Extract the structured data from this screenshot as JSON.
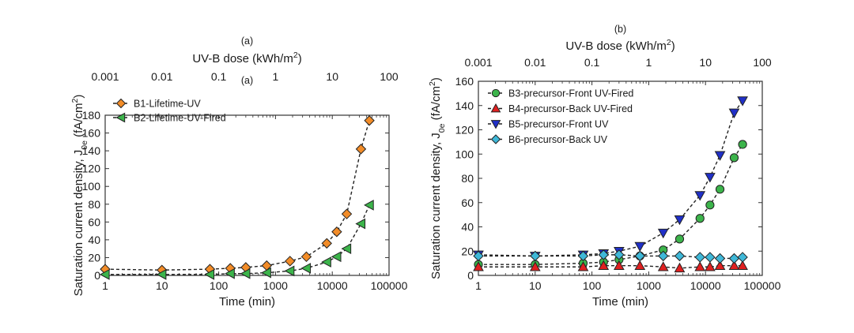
{
  "chart_data": [
    {
      "panel": "a",
      "type": "line",
      "labels_above": [
        "(a)",
        "(a)"
      ],
      "top_axis_label": "UV-B dose (kWh/m²)",
      "top_axis_ticks": [
        "0.001",
        "0.01",
        "0.1",
        "1",
        "10",
        "100"
      ],
      "xlabel": "Time (min)",
      "ylabel": "Saturation current density, J0e (fA/cm²)",
      "x_scale": "log",
      "xlim": [
        1,
        100000
      ],
      "ylim": [
        0,
        190
      ],
      "x_ticks": [
        "1",
        "10",
        "100",
        "1000",
        "10000",
        "100000"
      ],
      "y_ticks": [
        "0",
        "20",
        "40",
        "60",
        "80",
        "100",
        "120",
        "140",
        "160",
        "180"
      ],
      "legend_position": "top-left",
      "series": [
        {
          "name": "B1-Lifetime-UV",
          "color": "#f28c28",
          "marker": "diamond",
          "x": [
            1,
            10,
            70,
            160,
            300,
            700,
            1800,
            3500,
            8000,
            12000,
            18000,
            32000,
            45000
          ],
          "y": [
            7,
            6,
            7,
            8,
            9,
            11,
            16,
            21,
            36,
            49,
            69,
            142,
            174
          ]
        },
        {
          "name": "B2-Lifetime-UV-Fired",
          "color": "#3cb44b",
          "marker": "triangle-left",
          "x": [
            1,
            10,
            70,
            160,
            300,
            700,
            1800,
            3500,
            8000,
            12000,
            18000,
            32000,
            45000
          ],
          "y": [
            1,
            1,
            1,
            2,
            2,
            3,
            5,
            8,
            15,
            21,
            30,
            58,
            79
          ]
        }
      ]
    },
    {
      "panel": "b",
      "type": "line",
      "labels_above": [
        "(b)"
      ],
      "top_axis_label": "UV-B dose (kWh/m²)",
      "top_axis_ticks": [
        "0.001",
        "0.01",
        "0.1",
        "1",
        "10",
        "100"
      ],
      "xlabel": "Time (min)",
      "ylabel": "Saturation current density, J0e (fA/cm²)",
      "x_scale": "log",
      "xlim": [
        1,
        100000
      ],
      "ylim": [
        0,
        160
      ],
      "x_ticks": [
        "1",
        "10",
        "100",
        "1000",
        "10000",
        "100000"
      ],
      "y_ticks": [
        "0",
        "20",
        "40",
        "60",
        "80",
        "100",
        "120",
        "140",
        "160"
      ],
      "legend_position": "top-left",
      "series": [
        {
          "name": "B3-precursor-Front UV-Fired",
          "color": "#3cb44b",
          "marker": "circle",
          "x": [
            1,
            10,
            70,
            160,
            300,
            700,
            1800,
            3500,
            8000,
            12000,
            18000,
            32000,
            45000
          ],
          "y": [
            9,
            9,
            10,
            11,
            13,
            16,
            21,
            30,
            47,
            58,
            71,
            97,
            108
          ]
        },
        {
          "name": "B4-precursor-Back UV-Fired",
          "color": "#e02020",
          "marker": "triangle-up",
          "x": [
            1,
            10,
            70,
            160,
            300,
            700,
            1800,
            3500,
            8000,
            12000,
            18000,
            32000,
            45000
          ],
          "y": [
            7,
            7,
            7,
            8,
            8,
            8,
            7,
            6,
            7,
            7,
            8,
            8,
            8
          ]
        },
        {
          "name": "B5-precursor-Front UV",
          "color": "#2030c8",
          "marker": "triangle-down",
          "x": [
            1,
            10,
            70,
            160,
            300,
            700,
            1800,
            3500,
            8000,
            12000,
            18000,
            32000,
            45000
          ],
          "y": [
            17,
            16,
            17,
            18,
            20,
            24,
            35,
            46,
            66,
            81,
            99,
            134,
            144
          ]
        },
        {
          "name": "B6-precursor-Back UV",
          "color": "#3fb8d8",
          "marker": "diamond",
          "x": [
            1,
            10,
            70,
            160,
            300,
            700,
            1800,
            3500,
            8000,
            12000,
            18000,
            32000,
            45000
          ],
          "y": [
            16,
            16,
            16,
            17,
            17,
            16,
            16,
            16,
            15,
            15,
            14,
            14,
            15
          ]
        }
      ]
    }
  ]
}
